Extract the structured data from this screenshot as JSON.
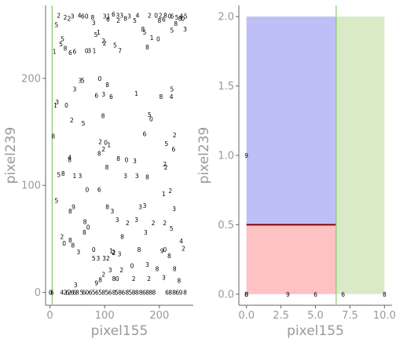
{
  "chart_data": [
    {
      "type": "scatter",
      "xlabel": "pixel155",
      "ylabel": "pixel239",
      "xlim": [
        -8,
        262
      ],
      "ylim": [
        -12,
        268
      ],
      "x_ticks": [
        "0",
        "100",
        "200"
      ],
      "x_tick_values": [
        0,
        100,
        200
      ],
      "y_ticks": [
        "0",
        "100",
        "200"
      ],
      "y_tick_values": [
        0,
        100,
        200
      ],
      "vline_x": 4,
      "vline_color": "#8cc66e",
      "points": [
        {
          "x": 1,
          "y": 0,
          "label": "0"
        },
        {
          "x": 4,
          "y": 0,
          "label": "6"
        },
        {
          "x": 22,
          "y": 0,
          "label": "4"
        },
        {
          "x": 28,
          "y": 0,
          "label": "2"
        },
        {
          "x": 32,
          "y": 0,
          "label": "6"
        },
        {
          "x": 36,
          "y": 0,
          "label": "2"
        },
        {
          "x": 41,
          "y": 0,
          "label": "6"
        },
        {
          "x": 45,
          "y": 0,
          "label": "6"
        },
        {
          "x": 50,
          "y": 0,
          "label": "8"
        },
        {
          "x": 58,
          "y": 0,
          "label": "5"
        },
        {
          "x": 62,
          "y": 0,
          "label": "6"
        },
        {
          "x": 68,
          "y": 0,
          "label": "0"
        },
        {
          "x": 74,
          "y": 0,
          "label": "6"
        },
        {
          "x": 80,
          "y": 0,
          "label": "5"
        },
        {
          "x": 86,
          "y": 0,
          "label": "6"
        },
        {
          "x": 92,
          "y": 0,
          "label": "5"
        },
        {
          "x": 98,
          "y": 0,
          "label": "8"
        },
        {
          "x": 104,
          "y": 0,
          "label": "5"
        },
        {
          "x": 110,
          "y": 0,
          "label": "6"
        },
        {
          "x": 117,
          "y": 0,
          "label": "8"
        },
        {
          "x": 122,
          "y": 0,
          "label": "5"
        },
        {
          "x": 128,
          "y": 0,
          "label": "8"
        },
        {
          "x": 134,
          "y": 0,
          "label": "6"
        },
        {
          "x": 141,
          "y": 0,
          "label": "8"
        },
        {
          "x": 147,
          "y": 0,
          "label": "5"
        },
        {
          "x": 153,
          "y": 0,
          "label": "8"
        },
        {
          "x": 159,
          "y": 0,
          "label": "8"
        },
        {
          "x": 166,
          "y": 0,
          "label": "8"
        },
        {
          "x": 172,
          "y": 0,
          "label": "6"
        },
        {
          "x": 178,
          "y": 0,
          "label": "8"
        },
        {
          "x": 184,
          "y": 0,
          "label": "8"
        },
        {
          "x": 190,
          "y": 0,
          "label": "8"
        },
        {
          "x": 214,
          "y": 0,
          "label": "6"
        },
        {
          "x": 220,
          "y": 0,
          "label": "8"
        },
        {
          "x": 227,
          "y": 0,
          "label": "8"
        },
        {
          "x": 233,
          "y": 0,
          "label": "6"
        },
        {
          "x": 239,
          "y": 0,
          "label": "9"
        },
        {
          "x": 247,
          "y": 0,
          "label": "8"
        },
        {
          "x": 47,
          "y": 7,
          "label": "3"
        },
        {
          "x": 85,
          "y": 9,
          "label": "9"
        },
        {
          "x": 92,
          "y": 12,
          "label": "8"
        },
        {
          "x": 117,
          "y": 13,
          "label": "8"
        },
        {
          "x": 123,
          "y": 13,
          "label": "0"
        },
        {
          "x": 153,
          "y": 13,
          "label": "2"
        },
        {
          "x": 181,
          "y": 13,
          "label": "2"
        },
        {
          "x": 208,
          "y": 14,
          "label": "3"
        },
        {
          "x": 236,
          "y": 11,
          "label": "8"
        },
        {
          "x": 98,
          "y": 17,
          "label": "2"
        },
        {
          "x": 110,
          "y": 21,
          "label": "3"
        },
        {
          "x": 131,
          "y": 21,
          "label": "2"
        },
        {
          "x": 150,
          "y": 25,
          "label": "0"
        },
        {
          "x": 178,
          "y": 26,
          "label": "3"
        },
        {
          "x": 196,
          "y": 22,
          "label": "8"
        },
        {
          "x": 228,
          "y": 22,
          "label": "8"
        },
        {
          "x": 99,
          "y": 32,
          "label": "3"
        },
        {
          "x": 106,
          "y": 32,
          "label": "2"
        },
        {
          "x": 117,
          "y": 37,
          "label": "2"
        },
        {
          "x": 127,
          "y": 36,
          "label": "3"
        },
        {
          "x": 218,
          "y": 34,
          "label": "8"
        },
        {
          "x": 52,
          "y": 38,
          "label": "3"
        },
        {
          "x": 80,
          "y": 32,
          "label": "5"
        },
        {
          "x": 88,
          "y": 32,
          "label": "3"
        },
        {
          "x": 80,
          "y": 40,
          "label": "0"
        },
        {
          "x": 112,
          "y": 39,
          "label": "1"
        },
        {
          "x": 116,
          "y": 38,
          "label": "2"
        },
        {
          "x": 163,
          "y": 40,
          "label": "8"
        },
        {
          "x": 205,
          "y": 39,
          "label": "9"
        },
        {
          "x": 210,
          "y": 40,
          "label": "0"
        },
        {
          "x": 244,
          "y": 41,
          "label": "2"
        },
        {
          "x": 26,
          "y": 46,
          "label": "0"
        },
        {
          "x": 37,
          "y": 49,
          "label": "8"
        },
        {
          "x": 42,
          "y": 44,
          "label": "8"
        },
        {
          "x": 132,
          "y": 52,
          "label": "8"
        },
        {
          "x": 175,
          "y": 56,
          "label": "3"
        },
        {
          "x": 240,
          "y": 48,
          "label": "4"
        },
        {
          "x": 22,
          "y": 52,
          "label": "2"
        },
        {
          "x": 63,
          "y": 56,
          "label": "8"
        },
        {
          "x": 70,
          "y": 61,
          "label": "0"
        },
        {
          "x": 64,
          "y": 66,
          "label": "8"
        },
        {
          "x": 142,
          "y": 65,
          "label": "2"
        },
        {
          "x": 189,
          "y": 65,
          "label": "2"
        },
        {
          "x": 210,
          "y": 65,
          "label": "2"
        },
        {
          "x": 222,
          "y": 60,
          "label": "5"
        },
        {
          "x": 123,
          "y": 68,
          "label": "3"
        },
        {
          "x": 158,
          "y": 68,
          "label": "3"
        },
        {
          "x": 37,
          "y": 76,
          "label": "8"
        },
        {
          "x": 43,
          "y": 80,
          "label": "9"
        },
        {
          "x": 105,
          "y": 80,
          "label": "8"
        },
        {
          "x": 114,
          "y": 76,
          "label": "3"
        },
        {
          "x": 165,
          "y": 80,
          "label": "3"
        },
        {
          "x": 173,
          "y": 81,
          "label": "3"
        },
        {
          "x": 227,
          "y": 78,
          "label": "3"
        },
        {
          "x": 12,
          "y": 86,
          "label": "5"
        },
        {
          "x": 68,
          "y": 96,
          "label": "0"
        },
        {
          "x": 90,
          "y": 96,
          "label": "6"
        },
        {
          "x": 208,
          "y": 92,
          "label": "1"
        },
        {
          "x": 220,
          "y": 95,
          "label": "2"
        },
        {
          "x": 138,
          "y": 109,
          "label": "3"
        },
        {
          "x": 159,
          "y": 109,
          "label": "3"
        },
        {
          "x": 178,
          "y": 108,
          "label": "8"
        },
        {
          "x": 210,
          "y": 120,
          "label": "2"
        },
        {
          "x": 16,
          "y": 110,
          "label": "5"
        },
        {
          "x": 24,
          "y": 111,
          "label": "8"
        },
        {
          "x": 45,
          "y": 109,
          "label": "1"
        },
        {
          "x": 55,
          "y": 109,
          "label": "3"
        },
        {
          "x": 104,
          "y": 117,
          "label": "8"
        },
        {
          "x": 125,
          "y": 125,
          "label": "8"
        },
        {
          "x": 140,
          "y": 124,
          "label": "0"
        },
        {
          "x": 155,
          "y": 123,
          "label": "3"
        },
        {
          "x": 212,
          "y": 117,
          "label": "2"
        },
        {
          "x": 36,
          "y": 124,
          "label": "8"
        },
        {
          "x": 36,
          "y": 126,
          "label": "4"
        },
        {
          "x": 90,
          "y": 130,
          "label": "8"
        },
        {
          "x": 98,
          "y": 134,
          "label": "2"
        },
        {
          "x": 226,
          "y": 134,
          "label": "6"
        },
        {
          "x": 92,
          "y": 141,
          "label": "2"
        },
        {
          "x": 102,
          "y": 140,
          "label": "0"
        },
        {
          "x": 108,
          "y": 138,
          "label": "1"
        },
        {
          "x": 213,
          "y": 139,
          "label": "5"
        },
        {
          "x": 173,
          "y": 148,
          "label": "6"
        },
        {
          "x": 228,
          "y": 147,
          "label": "2"
        },
        {
          "x": 6,
          "y": 146,
          "label": "8"
        },
        {
          "x": 40,
          "y": 161,
          "label": "2"
        },
        {
          "x": 61,
          "y": 158,
          "label": "5"
        },
        {
          "x": 97,
          "y": 165,
          "label": "8"
        },
        {
          "x": 182,
          "y": 166,
          "label": "5"
        },
        {
          "x": 185,
          "y": 162,
          "label": "0"
        },
        {
          "x": 30,
          "y": 175,
          "label": "0"
        },
        {
          "x": 13,
          "y": 178,
          "label": "3"
        },
        {
          "x": 10,
          "y": 175,
          "label": "1"
        },
        {
          "x": 85,
          "y": 184,
          "label": "6"
        },
        {
          "x": 98,
          "y": 185,
          "label": "3"
        },
        {
          "x": 112,
          "y": 183,
          "label": "6"
        },
        {
          "x": 158,
          "y": 186,
          "label": "1"
        },
        {
          "x": 203,
          "y": 183,
          "label": "8"
        },
        {
          "x": 222,
          "y": 183,
          "label": "4"
        },
        {
          "x": 45,
          "y": 190,
          "label": "3"
        },
        {
          "x": 55,
          "y": 198,
          "label": "3"
        },
        {
          "x": 91,
          "y": 200,
          "label": "0"
        },
        {
          "x": 105,
          "y": 194,
          "label": "8"
        },
        {
          "x": 60,
          "y": 198,
          "label": "5"
        },
        {
          "x": 223,
          "y": 190,
          "label": "5"
        },
        {
          "x": 8,
          "y": 225,
          "label": "1"
        },
        {
          "x": 28,
          "y": 228,
          "label": "8"
        },
        {
          "x": 37,
          "y": 224,
          "label": "6"
        },
        {
          "x": 45,
          "y": 225,
          "label": "6"
        },
        {
          "x": 67,
          "y": 226,
          "label": "0"
        },
        {
          "x": 72,
          "y": 226,
          "label": "3"
        },
        {
          "x": 81,
          "y": 226,
          "label": "1"
        },
        {
          "x": 100,
          "y": 233,
          "label": "2"
        },
        {
          "x": 98,
          "y": 235,
          "label": "2"
        },
        {
          "x": 119,
          "y": 231,
          "label": "5"
        },
        {
          "x": 128,
          "y": 226,
          "label": "7"
        },
        {
          "x": 173,
          "y": 243,
          "label": "5"
        },
        {
          "x": 170,
          "y": 246,
          "label": "8"
        },
        {
          "x": 178,
          "y": 229,
          "label": "8"
        },
        {
          "x": 186,
          "y": 238,
          "label": "1"
        },
        {
          "x": 198,
          "y": 237,
          "label": "0"
        },
        {
          "x": 208,
          "y": 255,
          "label": "6"
        },
        {
          "x": 223,
          "y": 245,
          "label": "5"
        },
        {
          "x": 230,
          "y": 251,
          "label": "8"
        },
        {
          "x": 247,
          "y": 246,
          "label": "3"
        },
        {
          "x": 20,
          "y": 232,
          "label": "5"
        },
        {
          "x": 23,
          "y": 237,
          "label": "5"
        },
        {
          "x": 84,
          "y": 241,
          "label": "5"
        },
        {
          "x": 89,
          "y": 243,
          "label": "1"
        },
        {
          "x": 12,
          "y": 250,
          "label": "5"
        },
        {
          "x": 28,
          "y": 257,
          "label": "2"
        },
        {
          "x": 16,
          "y": 259,
          "label": "2"
        },
        {
          "x": 35,
          "y": 256,
          "label": "2"
        },
        {
          "x": 41,
          "y": 258,
          "label": "3"
        },
        {
          "x": 54,
          "y": 259,
          "label": "4"
        },
        {
          "x": 60,
          "y": 258,
          "label": "6"
        },
        {
          "x": 67,
          "y": 258,
          "label": "0"
        },
        {
          "x": 78,
          "y": 257,
          "label": "8"
        },
        {
          "x": 100,
          "y": 258,
          "label": "3"
        },
        {
          "x": 107,
          "y": 258,
          "label": "1"
        },
        {
          "x": 116,
          "y": 260,
          "label": "6"
        },
        {
          "x": 124,
          "y": 259,
          "label": "3"
        },
        {
          "x": 131,
          "y": 259,
          "label": "3"
        },
        {
          "x": 145,
          "y": 258,
          "label": "3"
        },
        {
          "x": 160,
          "y": 259,
          "label": "4"
        },
        {
          "x": 182,
          "y": 259,
          "label": "2"
        },
        {
          "x": 194,
          "y": 259,
          "label": "0"
        },
        {
          "x": 211,
          "y": 259,
          "label": "8"
        },
        {
          "x": 219,
          "y": 258,
          "label": "0"
        },
        {
          "x": 223,
          "y": 258,
          "label": "6"
        },
        {
          "x": 240,
          "y": 258,
          "label": "4"
        },
        {
          "x": 80,
          "y": 252,
          "label": "3"
        },
        {
          "x": 106,
          "y": 255,
          "label": "6"
        },
        {
          "x": 125,
          "y": 254,
          "label": "2"
        },
        {
          "x": 138,
          "y": 256,
          "label": "8"
        },
        {
          "x": 155,
          "y": 254,
          "label": "5"
        },
        {
          "x": 200,
          "y": 254,
          "label": "8"
        },
        {
          "x": 202,
          "y": 259,
          "label": "2"
        },
        {
          "x": 232,
          "y": 257,
          "label": "5"
        },
        {
          "x": 238,
          "y": 256,
          "label": "8"
        },
        {
          "x": 243,
          "y": 256,
          "label": "0"
        },
        {
          "x": 248,
          "y": 258,
          "label": "5"
        }
      ]
    },
    {
      "type": "area",
      "xlabel": "pixel155",
      "ylabel": "pixel239",
      "xlim": [
        -0.55,
        10.55
      ],
      "ylim": [
        -0.08,
        2.08
      ],
      "x_ticks": [
        "0.0",
        "2.5",
        "5.0",
        "7.5",
        "10.0"
      ],
      "x_tick_values": [
        0,
        2.5,
        5,
        7.5,
        10
      ],
      "y_ticks": [
        "0.0",
        "0.5",
        "1.0",
        "1.5",
        "2.0"
      ],
      "y_tick_values": [
        0,
        0.5,
        1,
        1.5,
        2
      ],
      "regions": [
        {
          "x0": 0,
          "x1": 6.5,
          "y0": 0.5,
          "y1": 2.0,
          "color": "#bfbff7"
        },
        {
          "x0": 0,
          "x1": 6.5,
          "y0": 0,
          "y1": 0.5,
          "color": "#ffc2c2"
        },
        {
          "x0": 6.5,
          "x1": 10,
          "y0": 0,
          "y1": 2.0,
          "color": "#d8ebc6"
        }
      ],
      "hline": {
        "y": 0.5,
        "x0": 0,
        "x1": 6.5,
        "color": "#8b0000"
      },
      "vline": {
        "x": 6.5,
        "color": "#8cc66e"
      },
      "points": [
        {
          "x": 0,
          "y": 0,
          "label": "0"
        },
        {
          "x": 0,
          "y": 0,
          "label": "8"
        },
        {
          "x": 0,
          "y": 1,
          "label": "9"
        },
        {
          "x": 3,
          "y": 0,
          "label": "9"
        },
        {
          "x": 5,
          "y": 0,
          "label": "6"
        },
        {
          "x": 7,
          "y": 0,
          "label": "6"
        },
        {
          "x": 10,
          "y": 0,
          "label": "8"
        }
      ]
    }
  ]
}
